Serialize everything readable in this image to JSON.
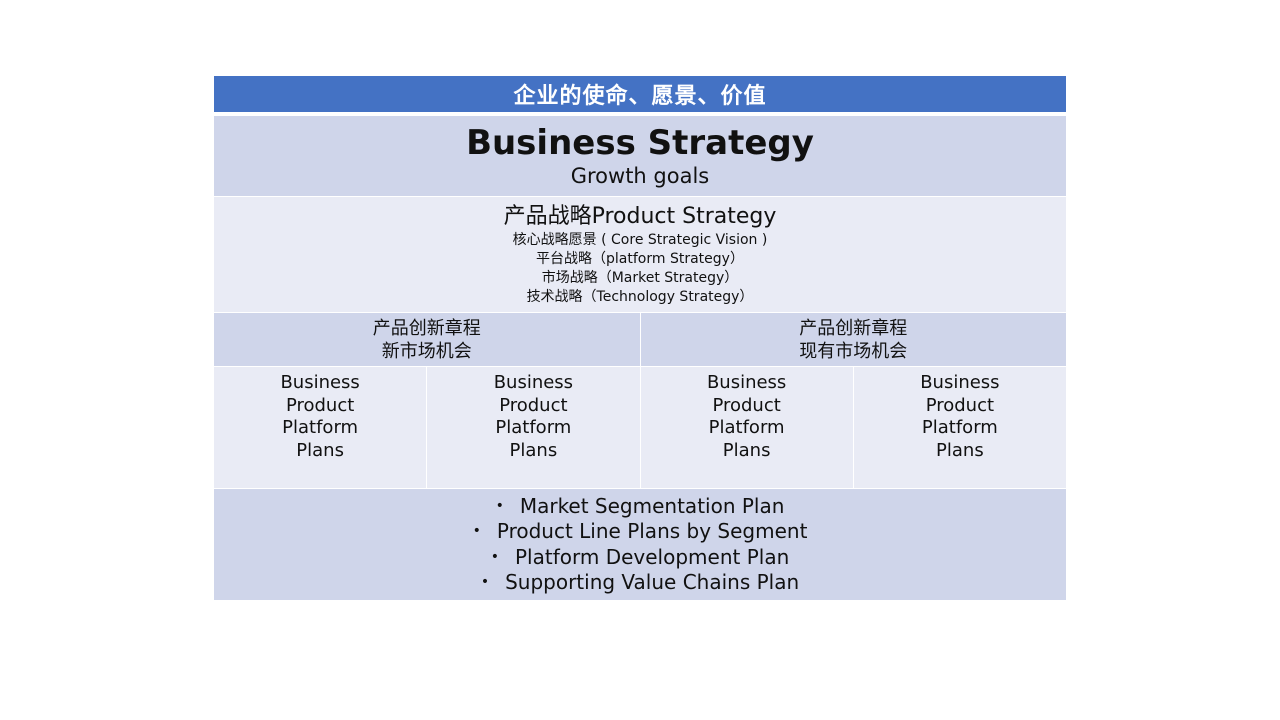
{
  "header": {
    "title": "企业的使命、愿景、价值"
  },
  "business_strategy": {
    "title": "Business Strategy",
    "subtitle": "Growth goals"
  },
  "product_strategy": {
    "title": "产品战略Product Strategy",
    "lines": [
      "核心战略愿景 ( Core Strategic Vision )",
      "平台战略（platform Strategy）",
      "市场战略（Market Strategy）",
      "技术战略（Technology Strategy）"
    ]
  },
  "charters": [
    {
      "line1": "产品创新章程",
      "line2": "新市场机会"
    },
    {
      "line1": "产品创新章程",
      "line2": "现有市场机会"
    }
  ],
  "plans": [
    {
      "lines": [
        "Business",
        "Product",
        "Platform",
        "Plans"
      ]
    },
    {
      "lines": [
        "Business",
        "Product",
        "Platform",
        "Plans"
      ]
    },
    {
      "lines": [
        "Business",
        "Product",
        "Platform",
        "Plans"
      ]
    },
    {
      "lines": [
        "Business",
        "Product",
        "Platform",
        "Plans"
      ]
    }
  ],
  "bullets": {
    "marker": "•",
    "items": [
      "Market Segmentation Plan",
      "Product Line Plans by Segment",
      "Platform Development Plan",
      "Supporting Value Chains Plan"
    ]
  },
  "colors": {
    "header_bg": "#4472c4",
    "band_dark": "#cfd5ea",
    "band_light": "#e9ebf5"
  }
}
